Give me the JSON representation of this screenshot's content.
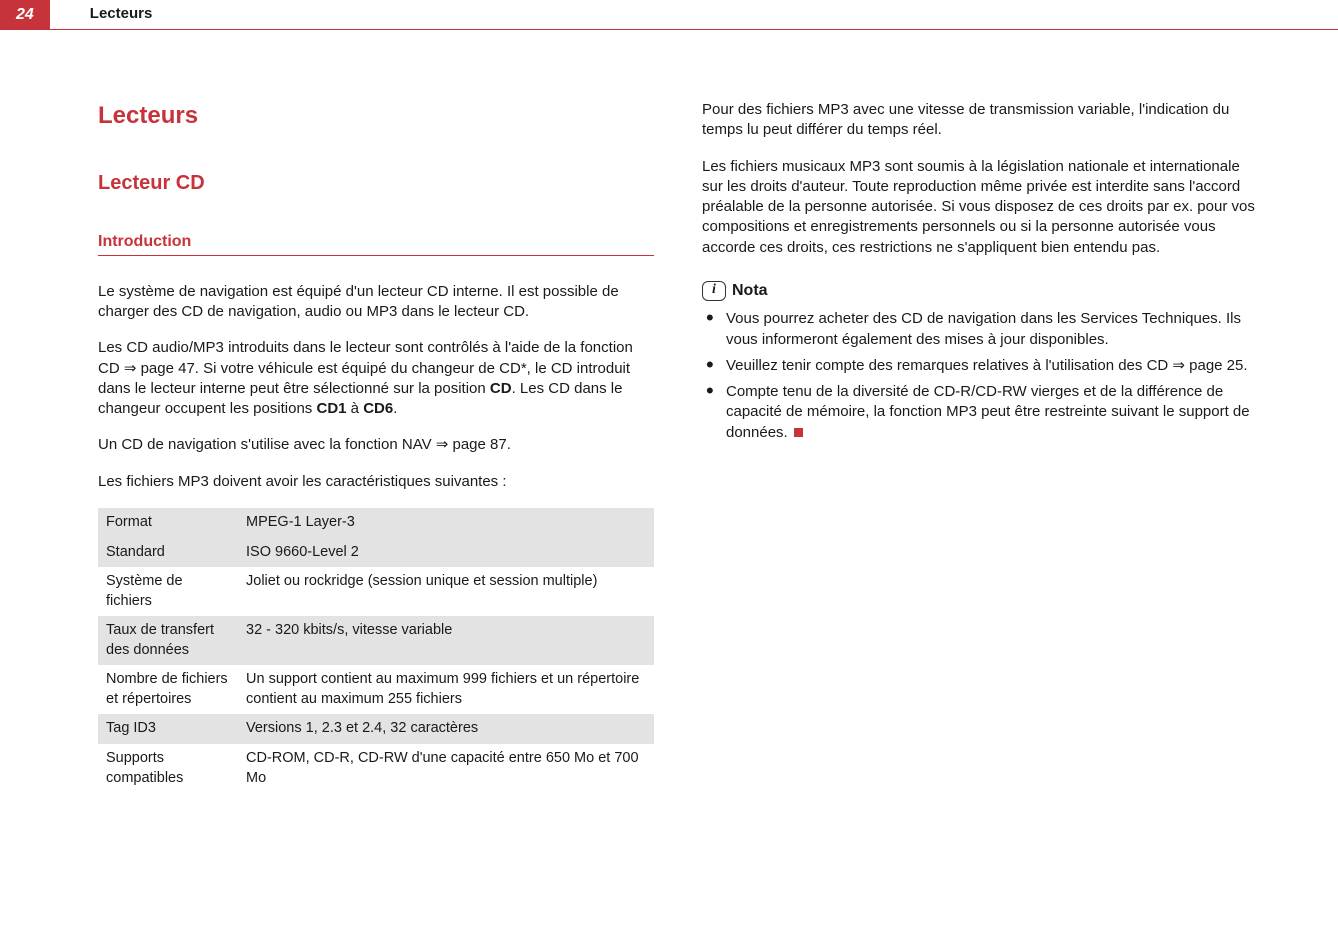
{
  "header": {
    "page_number": "24",
    "section": "Lecteurs"
  },
  "left": {
    "h1": "Lecteurs",
    "h2": "Lecteur CD",
    "h3": "Introduction",
    "p1": "Le système de navigation est équipé d'un lecteur CD interne. Il est possible de charger des CD de navigation, audio ou MP3 dans le lecteur CD.",
    "p2a": "Les CD audio/MP3 introduits dans le lecteur sont contrôlés à l'aide de la fonction CD ⇒ page 47. Si votre véhicule est équipé du changeur de CD*, le CD introduit dans le lecteur interne peut être sélectionné sur la position ",
    "p2_cd": "CD",
    "p2b": ". Les CD dans le changeur occupent les positions ",
    "p2_cd1": "CD1",
    "p2c": " à ",
    "p2_cd6": "CD6",
    "p2d": ".",
    "p3": "Un CD de navigation s'utilise avec la fonction NAV ⇒ page 87.",
    "p4": "Les fichiers MP3 doivent avoir les caractéristiques suivantes :",
    "table": {
      "rows": [
        {
          "k": "Format",
          "v": "MPEG-1 Layer-3",
          "shade": true
        },
        {
          "k": "Standard",
          "v": "ISO 9660-Level 2",
          "shade": true
        },
        {
          "k": "Système de fichiers",
          "v": "Joliet ou rockridge (session unique et session multiple)",
          "shade": false
        },
        {
          "k": "Taux de transfert des données",
          "v": "32 - 320 kbits/s, vitesse variable",
          "shade": true
        },
        {
          "k": "Nombre de fichiers et\nrépertoires",
          "v": "Un support contient au maximum 999 fichiers et un répertoire contient au maximum 255 fichiers",
          "shade": false
        },
        {
          "k": "Tag ID3",
          "v": "Versions 1, 2.3 et 2.4, 32 caractères",
          "shade": true
        },
        {
          "k": "Supports compatibles",
          "v": "CD-ROM, CD-R, CD-RW d'une capacité entre 650 Mo et 700 Mo",
          "shade": false
        }
      ]
    }
  },
  "right": {
    "p1": "Pour des fichiers MP3 avec une vitesse de transmission variable, l'indication du temps lu peut différer du temps réel.",
    "p2": "Les fichiers musicaux MP3 sont soumis à la législation nationale et internationale sur les droits d'auteur. Toute reproduction même privée est interdite sans l'accord préalable de la personne autorisée. Si vous disposez de ces droits par ex. pour vos compositions et enregistrements personnels ou si la personne autorisée vous accorde ces droits, ces restrictions ne s'appliquent bien entendu pas.",
    "nota_label": "Nota",
    "bullets": [
      "Vous pourrez acheter des CD de navigation dans les Services Techniques. Ils vous informeront également des mises à jour disponibles.",
      "Veuillez tenir compte des remarques relatives à l'utilisation des CD ⇒ page 25.",
      "Compte tenu de la diversité de CD-R/CD-RW vierges et de la différence de capacité de mémoire, la fonction MP3 peut être restreinte suivant le support de données."
    ]
  }
}
